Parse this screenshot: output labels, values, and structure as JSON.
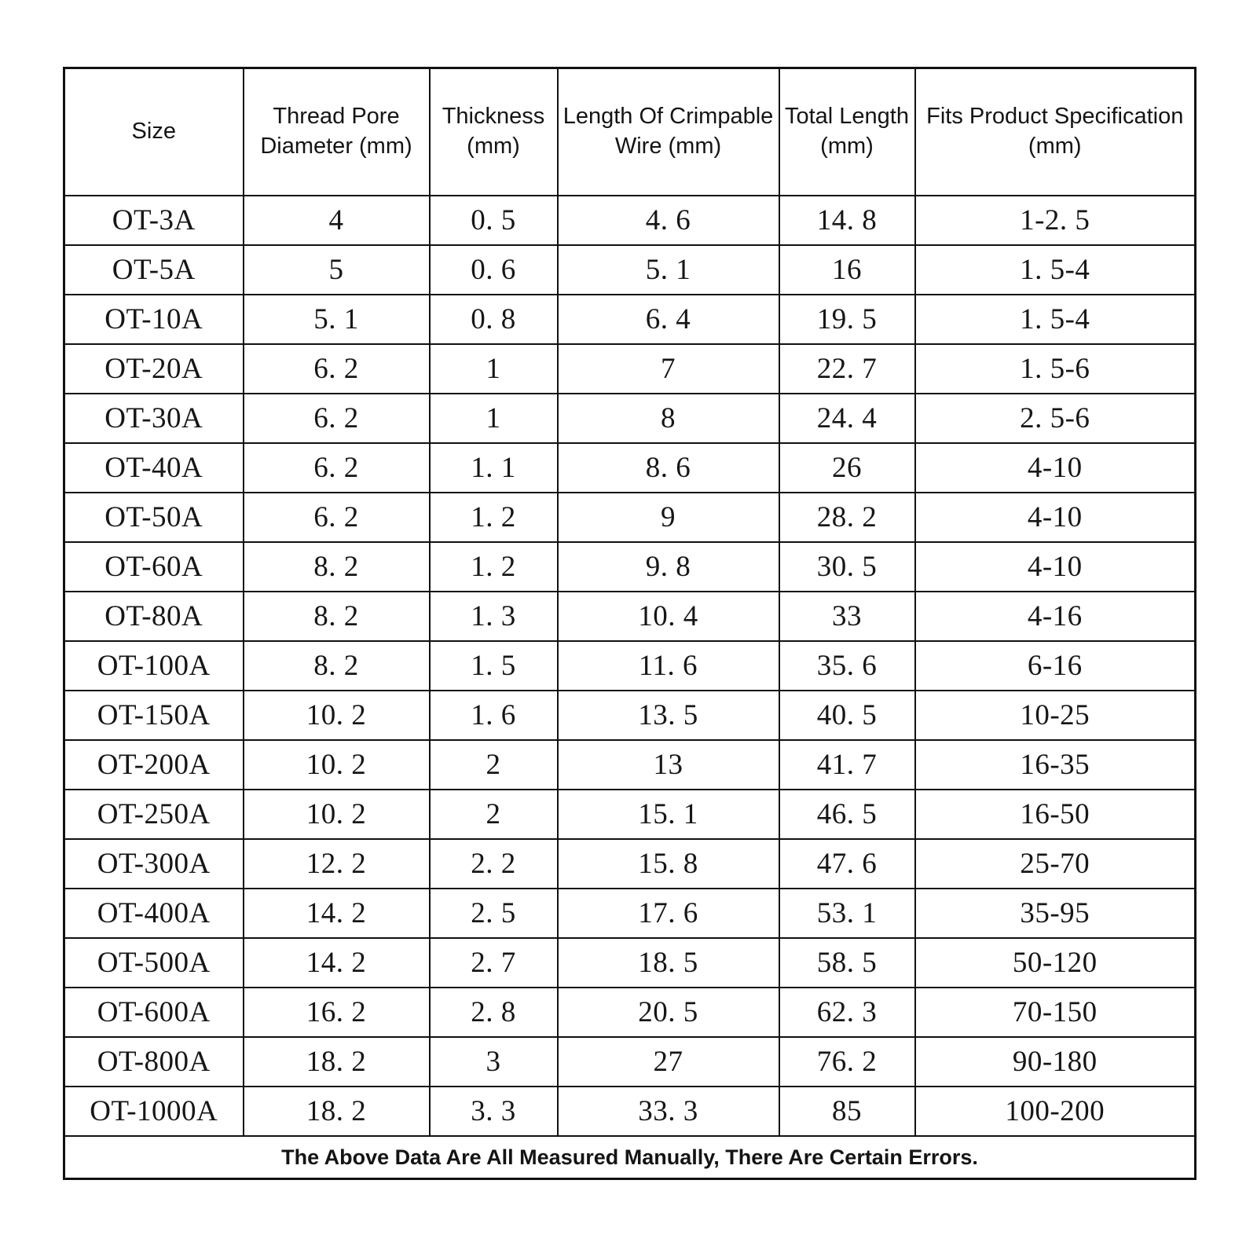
{
  "table": {
    "headers": [
      "Size",
      "Thread Pore Diameter (mm)",
      "Thickness (mm)",
      "Length Of Crimpable Wire (mm)",
      "Total Length (mm)",
      "Fits Product Specification (mm)"
    ],
    "rows": [
      {
        "cells": [
          "OT-3A",
          "4",
          "0. 5",
          "4. 6",
          "14. 8",
          "1-2. 5"
        ]
      },
      {
        "cells": [
          "OT-5A",
          "5",
          "0. 6",
          "5. 1",
          "16",
          "1. 5-4"
        ]
      },
      {
        "cells": [
          "OT-10A",
          "5. 1",
          "0. 8",
          "6. 4",
          "19. 5",
          "1. 5-4"
        ]
      },
      {
        "cells": [
          "OT-20A",
          "6. 2",
          "1",
          "7",
          "22. 7",
          "1. 5-6"
        ]
      },
      {
        "cells": [
          "OT-30A",
          "6. 2",
          "1",
          "8",
          "24. 4",
          "2. 5-6"
        ]
      },
      {
        "cells": [
          "OT-40A",
          "6. 2",
          "1. 1",
          "8. 6",
          "26",
          "4-10"
        ]
      },
      {
        "cells": [
          "OT-50A",
          "6. 2",
          "1. 2",
          "9",
          "28. 2",
          "4-10"
        ]
      },
      {
        "cells": [
          "OT-60A",
          "8. 2",
          "1. 2",
          "9. 8",
          "30. 5",
          "4-10"
        ]
      },
      {
        "cells": [
          "OT-80A",
          "8. 2",
          "1. 3",
          "10. 4",
          "33",
          "4-16"
        ]
      },
      {
        "cells": [
          "OT-100A",
          "8. 2",
          "1. 5",
          "11. 6",
          "35. 6",
          "6-16"
        ]
      },
      {
        "cells": [
          "OT-150A",
          "10. 2",
          "1. 6",
          "13. 5",
          "40. 5",
          "10-25"
        ]
      },
      {
        "cells": [
          "OT-200A",
          "10. 2",
          "2",
          "13",
          "41. 7",
          "16-35"
        ]
      },
      {
        "cells": [
          "OT-250A",
          "10. 2",
          "2",
          "15. 1",
          "46. 5",
          "16-50"
        ]
      },
      {
        "cells": [
          "OT-300A",
          "12. 2",
          "2. 2",
          "15. 8",
          "47. 6",
          "25-70"
        ]
      },
      {
        "cells": [
          "OT-400A",
          "14. 2",
          "2. 5",
          "17. 6",
          "53. 1",
          "35-95"
        ]
      },
      {
        "cells": [
          "OT-500A",
          "14. 2",
          "2. 7",
          "18. 5",
          "58. 5",
          "50-120"
        ]
      },
      {
        "cells": [
          "OT-600A",
          "16. 2",
          "2. 8",
          "20. 5",
          "62. 3",
          "70-150"
        ]
      },
      {
        "cells": [
          "OT-800A",
          "18. 2",
          "3",
          "27",
          "76. 2",
          "90-180"
        ]
      },
      {
        "cells": [
          "OT-1000A",
          "18. 2",
          "3. 3",
          "33. 3",
          "85",
          "100-200"
        ]
      }
    ],
    "footer_note": "The Above Data Are All Measured Manually, There Are Certain Errors."
  }
}
